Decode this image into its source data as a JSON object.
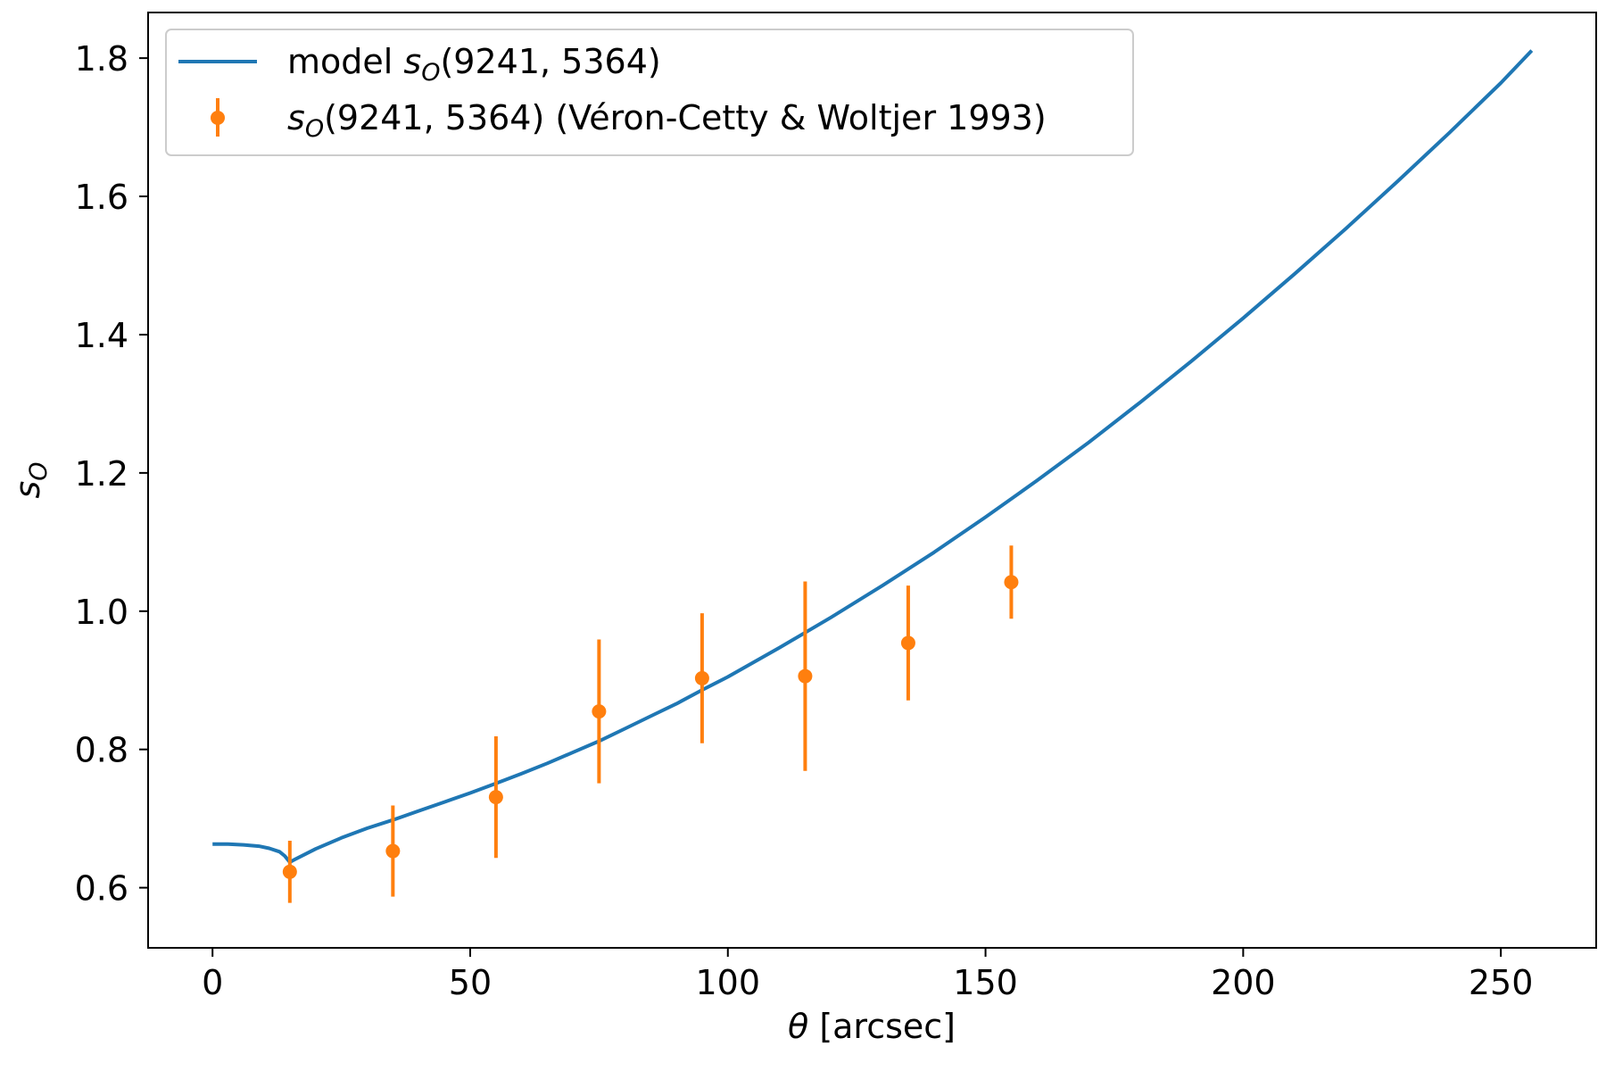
{
  "chart_data": {
    "type": "line",
    "xlabel_symbol": "θ",
    "xlabel_rest": " [arcsec]",
    "ylabel_base": "s",
    "ylabel_sub": "O",
    "xlim": [
      -12.5,
      268.5
    ],
    "ylim": [
      0.513,
      1.866
    ],
    "xticks": [
      0,
      50,
      100,
      150,
      200,
      250
    ],
    "xtick_labels": [
      "0",
      "50",
      "100",
      "150",
      "200",
      "250"
    ],
    "yticks": [
      0.6,
      0.8,
      1.0,
      1.2,
      1.4,
      1.6,
      1.8
    ],
    "ytick_labels": [
      "0.6",
      "0.8",
      "1.0",
      "1.2",
      "1.4",
      "1.6",
      "1.8"
    ],
    "grid": false,
    "legend_position": "top-left",
    "colors": {
      "model": "#1f77b4",
      "data": "#ff7f0e"
    },
    "series": [
      {
        "name": "model s_O(9241, 5364)",
        "legend_prefix": "model ",
        "legend_var": "s",
        "legend_sub": "O",
        "legend_suffix": "(9241, 5364)",
        "kind": "line",
        "x": [
          0,
          3,
          6,
          9,
          11,
          13,
          14,
          15,
          16,
          20,
          25,
          30,
          35,
          40,
          45,
          50,
          55,
          60,
          65,
          70,
          75,
          80,
          85,
          90,
          95,
          100,
          110,
          120,
          130,
          140,
          150,
          160,
          170,
          180,
          190,
          200,
          210,
          220,
          230,
          240,
          250,
          256
        ],
        "y": [
          0.663,
          0.663,
          0.662,
          0.66,
          0.657,
          0.652,
          0.646,
          0.637,
          0.641,
          0.656,
          0.672,
          0.686,
          0.698,
          0.711,
          0.724,
          0.737,
          0.751,
          0.765,
          0.78,
          0.796,
          0.812,
          0.83,
          0.848,
          0.866,
          0.886,
          0.905,
          0.947,
          0.991,
          1.037,
          1.085,
          1.136,
          1.189,
          1.244,
          1.302,
          1.362,
          1.424,
          1.488,
          1.554,
          1.622,
          1.692,
          1.764,
          1.811
        ]
      },
      {
        "name": "s_O(9241, 5364) (Véron-Cetty & Woltjer 1993)",
        "legend_prefix": "",
        "legend_var": "s",
        "legend_sub": "O",
        "legend_suffix": "(9241, 5364) (Véron-Cetty & Woltjer 1993)",
        "kind": "errorbar",
        "x": [
          15,
          35,
          55,
          75,
          95,
          115,
          135,
          155
        ],
        "y": [
          0.623,
          0.653,
          0.731,
          0.855,
          0.903,
          0.906,
          0.954,
          1.042
        ],
        "yerr": [
          0.045,
          0.066,
          0.088,
          0.104,
          0.094,
          0.137,
          0.083,
          0.053
        ]
      }
    ]
  }
}
